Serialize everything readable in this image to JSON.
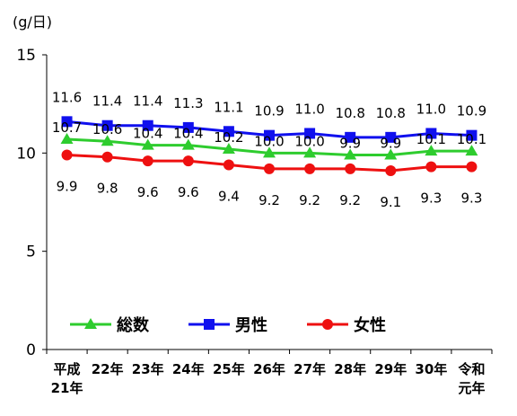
{
  "chart_data": {
    "type": "line",
    "unit_label": "(g/日)",
    "ylim": [
      0,
      15
    ],
    "yticks": [
      "0",
      "5",
      "10",
      "15"
    ],
    "categories": [
      [
        "平成",
        "21年"
      ],
      [
        "22年"
      ],
      [
        "23年"
      ],
      [
        "24年"
      ],
      [
        "25年"
      ],
      [
        "26年"
      ],
      [
        "27年"
      ],
      [
        "28年"
      ],
      [
        "29年"
      ],
      [
        "30年"
      ],
      [
        "令和",
        "元年"
      ]
    ],
    "series": [
      {
        "name": "総数",
        "color": "#2ecc2e",
        "marker": "triangle",
        "values": [
          10.7,
          10.6,
          10.4,
          10.4,
          10.2,
          10.0,
          10.0,
          9.9,
          9.9,
          10.1,
          10.1
        ],
        "labels": [
          "10.7",
          "10.6",
          "10.4",
          "10.4",
          "10.2",
          "10.0",
          "10.0",
          "9.9",
          "9.9",
          "10.1",
          "10.1"
        ]
      },
      {
        "name": "男性",
        "color": "#1010ee",
        "marker": "square",
        "values": [
          11.6,
          11.4,
          11.4,
          11.3,
          11.1,
          10.9,
          11.0,
          10.8,
          10.8,
          11.0,
          10.9
        ],
        "labels": [
          "11.6",
          "11.4",
          "11.4",
          "11.3",
          "11.1",
          "10.9",
          "11.0",
          "10.8",
          "10.8",
          "11.0",
          "10.9"
        ]
      },
      {
        "name": "女性",
        "color": "#ee1010",
        "marker": "circle",
        "values": [
          9.9,
          9.8,
          9.6,
          9.6,
          9.4,
          9.2,
          9.2,
          9.2,
          9.1,
          9.3,
          9.3
        ],
        "labels": [
          "9.9",
          "9.8",
          "9.6",
          "9.6",
          "9.4",
          "9.2",
          "9.2",
          "9.2",
          "9.1",
          "9.3",
          "9.3"
        ]
      }
    ],
    "legend_position": "lower-left",
    "grid": false
  }
}
